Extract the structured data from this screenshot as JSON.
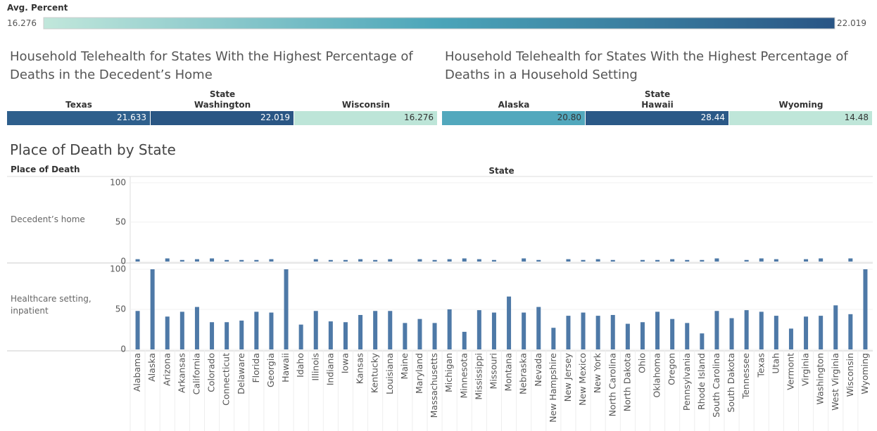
{
  "legend": {
    "title": "Avg. Percent",
    "min": 16.276,
    "max": 22.019,
    "colors": [
      "#c1e7db",
      "#4ba5b9",
      "#295585"
    ]
  },
  "tables": [
    {
      "title": "Household Telehealth for States With the Highest Percentage of Deaths in the Decedent’s Home",
      "header": "State",
      "categories": [
        "Texas",
        "Washington",
        "Wisconsin"
      ],
      "values": [
        21.633,
        22.019,
        16.276
      ],
      "colors": [
        "#2e5f8c",
        "#2a5684",
        "#bde5d8"
      ]
    },
    {
      "title": "Household Telehealth for States With the Highest Percentage of Deaths in a Household Setting",
      "header": "State",
      "categories": [
        "Alaska",
        "Hawaii",
        "Wyoming"
      ],
      "values": [
        20.8,
        28.44,
        14.48
      ],
      "value_labels": [
        "20.80",
        "28.44",
        "14.48"
      ],
      "colors": [
        "#52a8bd",
        "#2b5987",
        "#bfe6d9"
      ]
    }
  ],
  "chart_data": {
    "type": "bar",
    "title": "Place of Death by State",
    "row_header": "Place of Death",
    "column_header": "State",
    "color": "#4e79a7",
    "ylim": [
      0,
      107
    ],
    "yticks": [
      0,
      50,
      100
    ],
    "grid": true,
    "categories": [
      "Alabama",
      "Alaska",
      "Arizona",
      "Arkansas",
      "California",
      "Colorado",
      "Connecticut",
      "Delaware",
      "Florida",
      "Georgia",
      "Hawaii",
      "Idaho",
      "Illinois",
      "Indiana",
      "Iowa",
      "Kansas",
      "Kentucky",
      "Louisiana",
      "Maine",
      "Maryland",
      "Massachusetts",
      "Michigan",
      "Minnesota",
      "Mississippi",
      "Missouri",
      "Montana",
      "Nebraska",
      "Nevada",
      "New Hampshire",
      "New Jersey",
      "New Mexico",
      "New York",
      "North Carolina",
      "North Dakota",
      "Ohio",
      "Oklahoma",
      "Oregon",
      "Pennsylvania",
      "Rhode Island",
      "South Carolina",
      "South Dakota",
      "Tennessee",
      "Texas",
      "Utah",
      "Vermont",
      "Virginia",
      "Washington",
      "West Virginia",
      "Wisconsin",
      "Wyoming"
    ],
    "series": [
      {
        "name": "Decedent’s home",
        "values": [
          3,
          null,
          4,
          2,
          3,
          4,
          2,
          2,
          2,
          3,
          null,
          null,
          3,
          2,
          2,
          3,
          2,
          3,
          null,
          3,
          2,
          3,
          4,
          3,
          2,
          null,
          4,
          2,
          null,
          3,
          2,
          3,
          2,
          null,
          2,
          2,
          3,
          2,
          2,
          4,
          null,
          2,
          4,
          3,
          null,
          3,
          4,
          null,
          4,
          null
        ]
      },
      {
        "name": "Healthcare setting, inpatient",
        "values": [
          48,
          100,
          41,
          47,
          53,
          34,
          34,
          36,
          47,
          46,
          100,
          31,
          48,
          35,
          34,
          43,
          48,
          48,
          33,
          38,
          33,
          50,
          22,
          49,
          46,
          66,
          46,
          53,
          27,
          42,
          46,
          42,
          43,
          32,
          34,
          47,
          38,
          33,
          20,
          48,
          39,
          49,
          47,
          42,
          26,
          41,
          42,
          55,
          44,
          100
        ]
      }
    ]
  }
}
